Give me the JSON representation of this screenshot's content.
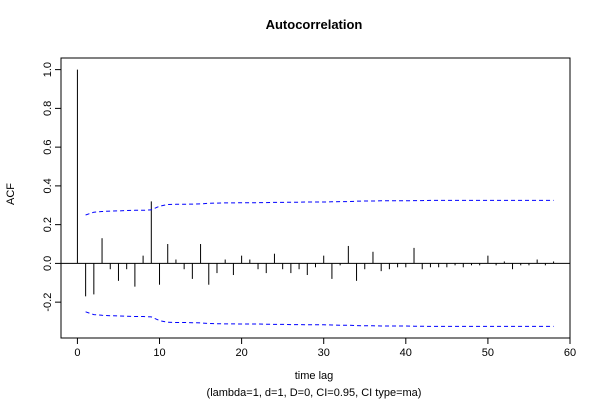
{
  "chart_data": {
    "type": "bar",
    "title": "Autocorrelation",
    "xlabel": "time lag",
    "subtitle": "(lambda=1, d=1, D=0, CI=0.95, CI type=ma)",
    "ylabel": "ACF",
    "xlim": [
      -2,
      60
    ],
    "ylim": [
      -0.385,
      1.06
    ],
    "x_ticks": [
      0,
      10,
      20,
      30,
      40,
      50,
      60
    ],
    "y_ticks": [
      -0.2,
      0.0,
      0.2,
      0.4,
      0.6,
      0.8,
      1.0
    ],
    "y_tick_labels": [
      "-0.2",
      "0.0",
      "0.2",
      "0.4",
      "0.6",
      "0.8",
      "1.0"
    ],
    "grid": false,
    "lags": [
      0,
      1,
      2,
      3,
      4,
      5,
      6,
      7,
      8,
      9,
      10,
      11,
      12,
      13,
      14,
      15,
      16,
      17,
      18,
      19,
      20,
      21,
      22,
      23,
      24,
      25,
      26,
      27,
      28,
      29,
      30,
      31,
      32,
      33,
      34,
      35,
      36,
      37,
      38,
      39,
      40,
      41,
      42,
      43,
      44,
      45,
      46,
      47,
      48,
      49,
      50,
      51,
      52,
      53,
      54,
      55,
      56,
      57,
      58
    ],
    "acf": [
      1.0,
      -0.17,
      -0.16,
      0.13,
      -0.03,
      -0.09,
      -0.03,
      -0.12,
      0.04,
      0.32,
      -0.11,
      0.1,
      0.02,
      -0.03,
      -0.08,
      0.1,
      -0.11,
      -0.05,
      0.02,
      -0.06,
      0.04,
      0.02,
      -0.03,
      -0.05,
      0.05,
      -0.03,
      -0.05,
      -0.03,
      -0.06,
      -0.02,
      0.04,
      -0.08,
      -0.01,
      0.09,
      -0.09,
      -0.03,
      0.06,
      -0.04,
      -0.03,
      -0.02,
      -0.02,
      0.08,
      -0.03,
      -0.02,
      -0.02,
      -0.02,
      -0.01,
      -0.02,
      -0.01,
      -0.01,
      0.04,
      -0.01,
      0.01,
      -0.03,
      -0.01,
      -0.01,
      0.02,
      -0.01,
      0.01
    ],
    "ci_upper": [
      null,
      0.25,
      0.264,
      0.268,
      0.27,
      0.271,
      0.273,
      0.274,
      0.274,
      0.276,
      0.295,
      0.304,
      0.305,
      0.305,
      0.306,
      0.307,
      0.31,
      0.311,
      0.312,
      0.312,
      0.313,
      0.313,
      0.313,
      0.314,
      0.315,
      0.315,
      0.316,
      0.316,
      0.317,
      0.317,
      0.317,
      0.318,
      0.319,
      0.319,
      0.321,
      0.322,
      0.322,
      0.323,
      0.323,
      0.323,
      0.323,
      0.324,
      0.324,
      0.325,
      0.325,
      0.325,
      0.325,
      0.325,
      0.325,
      0.325,
      0.325,
      0.325,
      0.325,
      0.325,
      0.325,
      0.325,
      0.325,
      0.325,
      0.325
    ],
    "line_color": "#000000",
    "ci_color": "#0000ff"
  }
}
